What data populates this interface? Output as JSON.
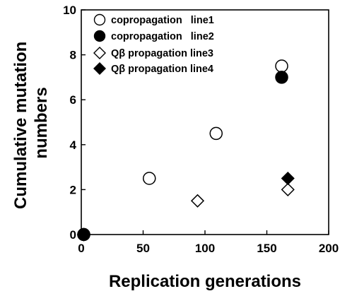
{
  "chart_data": {
    "type": "scatter",
    "title": "",
    "xlabel": "Replication generations",
    "ylabel_lines": [
      "Cumulative mutation",
      "numbers"
    ],
    "xlim": [
      0,
      200
    ],
    "ylim": [
      0,
      10
    ],
    "xticks": [
      0,
      50,
      100,
      150,
      200
    ],
    "yticks": [
      0,
      2,
      4,
      6,
      8,
      10
    ],
    "grid": false,
    "legend": "top-left",
    "series": [
      {
        "name": "copropagation   line1",
        "marker": "circle-open",
        "x": [
          2,
          55,
          109,
          162
        ],
        "y": [
          0,
          2.5,
          4.5,
          7.5
        ]
      },
      {
        "name": "copropagation   line2",
        "marker": "circle-filled",
        "x": [
          2,
          162
        ],
        "y": [
          0,
          7.0
        ]
      },
      {
        "name": "Qβ propagation line3",
        "marker": "diamond-open",
        "x": [
          2,
          94,
          167
        ],
        "y": [
          0,
          1.5,
          2.0
        ]
      },
      {
        "name": "Qβ propagation line4",
        "marker": "diamond-filled",
        "x": [
          2,
          167
        ],
        "y": [
          0,
          2.5
        ]
      }
    ]
  }
}
